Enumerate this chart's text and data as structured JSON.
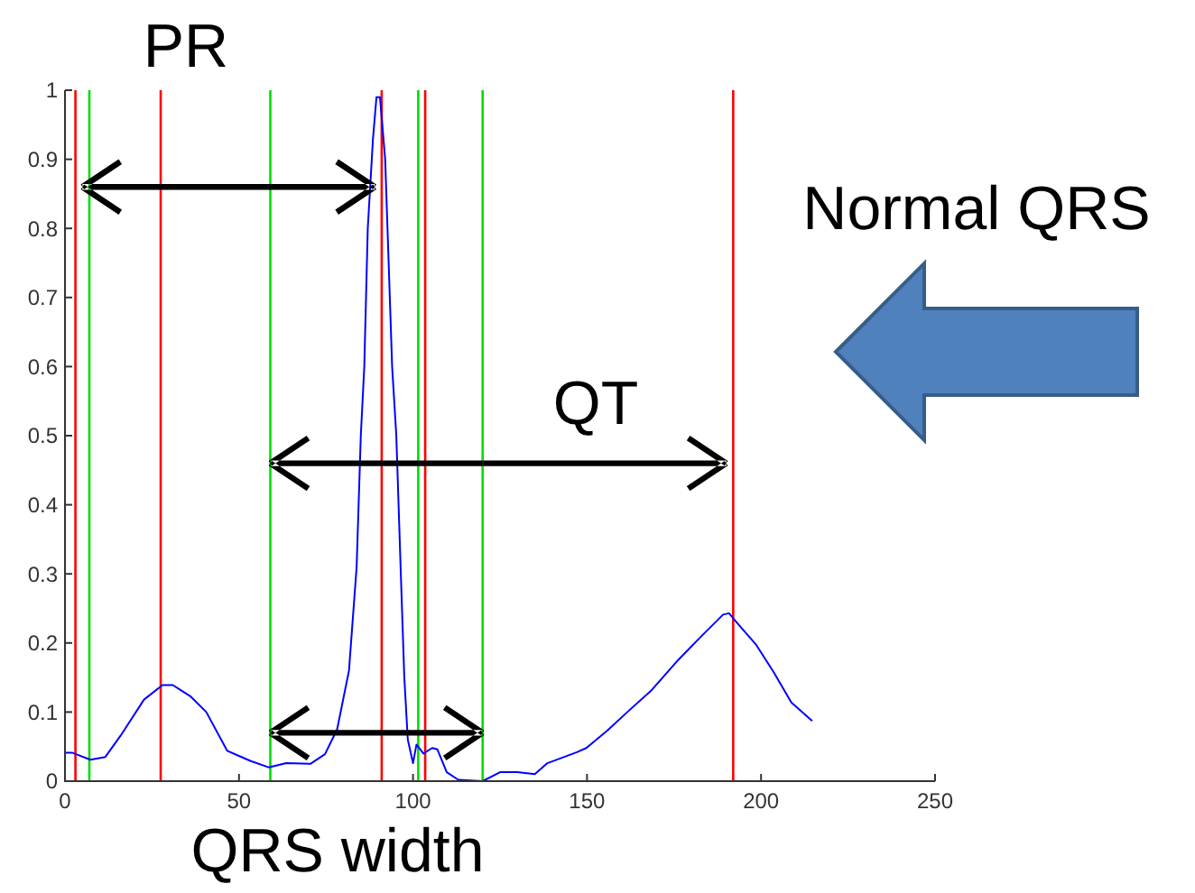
{
  "chart_data": {
    "type": "line",
    "xlim": [
      0,
      250
    ],
    "xticks": [
      0,
      50,
      100,
      150,
      200,
      250
    ],
    "ylim": [
      0,
      1
    ],
    "yticks": [
      0,
      0.1,
      0.2,
      0.3,
      0.4,
      0.5,
      0.6,
      0.7,
      0.8,
      0.9,
      1
    ],
    "series": [
      {
        "color": "#0000ff",
        "x": [
          0,
          2.2,
          7.3,
          11.6,
          16,
          22.7,
          28,
          31,
          36,
          40.6,
          46.6,
          53.4,
          58.5,
          63.6,
          70.5,
          74.7,
          78.2,
          81.6,
          83.8,
          85,
          86,
          87,
          88.5,
          89.5,
          90.5,
          92,
          93,
          94,
          95.2,
          96.5,
          97.5,
          98.5,
          100,
          101,
          103,
          105.5,
          107,
          109.7,
          113,
          120,
          125,
          130,
          135,
          138.6,
          147.1,
          149.8,
          155.8,
          161.8,
          168.6,
          176.3,
          183.1,
          189.1,
          190.8,
          193.3,
          198.5,
          203.6,
          208.7,
          214.7
        ],
        "values": [
          0.041,
          0.041,
          0.031,
          0.035,
          0.066,
          0.118,
          0.139,
          0.139,
          0.123,
          0.1,
          0.044,
          0.029,
          0.02,
          0.026,
          0.025,
          0.039,
          0.075,
          0.16,
          0.31,
          0.5,
          0.6,
          0.8,
          0.93,
          0.99,
          0.99,
          0.9,
          0.75,
          0.6,
          0.5,
          0.3,
          0.15,
          0.06,
          0.026,
          0.053,
          0.04,
          0.048,
          0.046,
          0.013,
          0.002,
          0,
          0.013,
          0.013,
          0.01,
          0.026,
          0.042,
          0.048,
          0.073,
          0.101,
          0.132,
          0.176,
          0.211,
          0.241,
          0.243,
          0.228,
          0.198,
          0.158,
          0.114,
          0.087
        ]
      }
    ],
    "ref_lines": [
      {
        "axis": "x",
        "value": 3,
        "color": "#ff0000"
      },
      {
        "axis": "x",
        "value": 7,
        "color": "#00dd00"
      },
      {
        "axis": "x",
        "value": 27.5,
        "color": "#ff0000"
      },
      {
        "axis": "x",
        "value": 59,
        "color": "#00dd00"
      },
      {
        "axis": "x",
        "value": 91,
        "color": "#ff0000"
      },
      {
        "axis": "x",
        "value": 101.5,
        "color": "#00dd00"
      },
      {
        "axis": "x",
        "value": 103.5,
        "color": "#ff0000"
      },
      {
        "axis": "x",
        "value": 120,
        "color": "#00dd00"
      },
      {
        "axis": "x",
        "value": 192,
        "color": "#ff0000"
      }
    ],
    "annotations": [
      "PR",
      "QT",
      "QRS width",
      "Normal QRS"
    ],
    "grid": false
  }
}
